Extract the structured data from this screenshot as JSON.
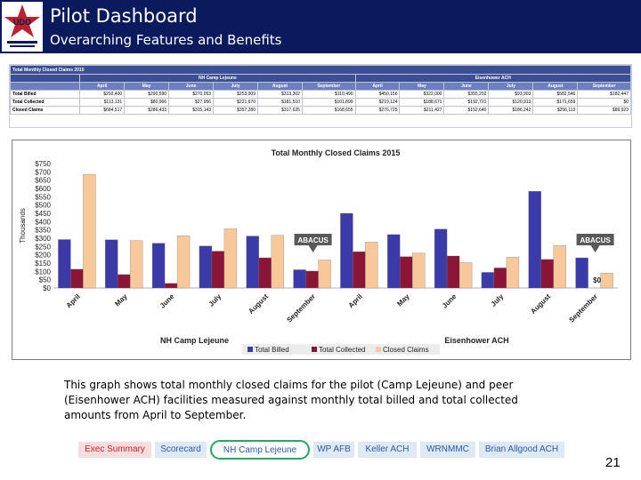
{
  "header": {
    "title": "Pilot Dashboard",
    "subtitle": "Overarching Features and Benefits",
    "logo_text": "UDO"
  },
  "colors": {
    "header_bg": "#0a1a5c",
    "billed": "#3a3aa8",
    "collected": "#8a1537",
    "closed": "#f9c89a",
    "tab_active_border": "#26a85f"
  },
  "table": {
    "caption": "Total Monthly Closed Claims 2015",
    "groups": [
      "NH Camp Lejeune",
      "Eisenhower ACH"
    ],
    "months": [
      "April",
      "May",
      "June",
      "July",
      "August",
      "September",
      "April",
      "May",
      "June",
      "July",
      "August",
      "September"
    ],
    "rows": [
      {
        "label": "Total Billed",
        "values": [
          "$292,400",
          "$290,590",
          "$270,053",
          "$253,009",
          "$313,302",
          "$110,490",
          "$450,156",
          "$322,000",
          "$355,202",
          "$93,903",
          "$582,546",
          "$182,447"
        ]
      },
      {
        "label": "Total Collected",
        "values": [
          "$113,131",
          "$80,966",
          "$27,956",
          "$221,670",
          "$181,510",
          "$101,899",
          "$219,124",
          "$188,671",
          "$192,721",
          "$120,913",
          "$171,659",
          "$0"
        ]
      },
      {
        "label": "Closed Claims",
        "values": [
          "$684,517",
          "$286,433",
          "$315,143",
          "$357,280",
          "$317,625",
          "$168,655",
          "$276,725",
          "$211,427",
          "$152,640",
          "$186,242",
          "$256,113",
          "$89,923"
        ]
      }
    ]
  },
  "chart_data": {
    "type": "bar",
    "title": "Total Monthly Closed Claims 2015",
    "ylabel": "Thousands",
    "ylim": [
      0,
      750
    ],
    "yticks": [
      "$0",
      "$50",
      "$100",
      "$150",
      "$200",
      "$250",
      "$300",
      "$350",
      "$400",
      "$450",
      "$500",
      "$550",
      "$600",
      "$650",
      "$700",
      "$750"
    ],
    "categories": [
      "April",
      "May",
      "June",
      "July",
      "August",
      "September",
      "April",
      "May",
      "June",
      "July",
      "August",
      "September"
    ],
    "groups": [
      {
        "name": "NH Camp Lejeune",
        "start": 0,
        "end": 5
      },
      {
        "name": "Eisenhower ACH",
        "start": 6,
        "end": 11
      }
    ],
    "series": [
      {
        "name": "Total Billed",
        "color": "#3a3aa8",
        "values": [
          292,
          291,
          270,
          253,
          313,
          110,
          450,
          322,
          355,
          94,
          583,
          182
        ]
      },
      {
        "name": "Total Collected",
        "color": "#8a1537",
        "values": [
          113,
          81,
          28,
          222,
          182,
          102,
          219,
          189,
          193,
          121,
          172,
          0
        ]
      },
      {
        "name": "Closed Claims",
        "color": "#f9c89a",
        "values": [
          685,
          286,
          315,
          357,
          318,
          169,
          277,
          211,
          153,
          186,
          256,
          90
        ]
      }
    ],
    "annotations": [
      {
        "text": "ABACUS",
        "category_index": 5
      },
      {
        "text": "ABACUS",
        "category_index": 11
      },
      {
        "text": "$0",
        "category_index": 11
      }
    ],
    "legend_position": "bottom",
    "grid": false
  },
  "description": "This graph shows total monthly closed claims for the pilot (Camp Lejeune) and peer (Eisenhower ACH) facilities measured against monthly total billed and total collected amounts from April to September.",
  "tabs": [
    {
      "label": "Exec Summary",
      "color": "#d42020",
      "bg": "#f6dede",
      "active": false
    },
    {
      "label": "Scorecard",
      "color": "#2b5aa8",
      "bg": "#dfe9f5",
      "active": false
    },
    {
      "label": "NH Camp Lejeune",
      "color": "#2b5aa8",
      "bg": "#ffffff",
      "active": true
    },
    {
      "label": "WP AFB",
      "color": "#2b5aa8",
      "bg": "#dfe9f5",
      "active": false
    },
    {
      "label": "Keller ACH",
      "color": "#2b5aa8",
      "bg": "#dfe9f5",
      "active": false
    },
    {
      "label": "WRNMMC",
      "color": "#2b5aa8",
      "bg": "#dfe9f5",
      "active": false
    },
    {
      "label": "Brian Allgood ACH",
      "color": "#2b5aa8",
      "bg": "#dfe9f5",
      "active": false
    }
  ],
  "page_number": "21"
}
